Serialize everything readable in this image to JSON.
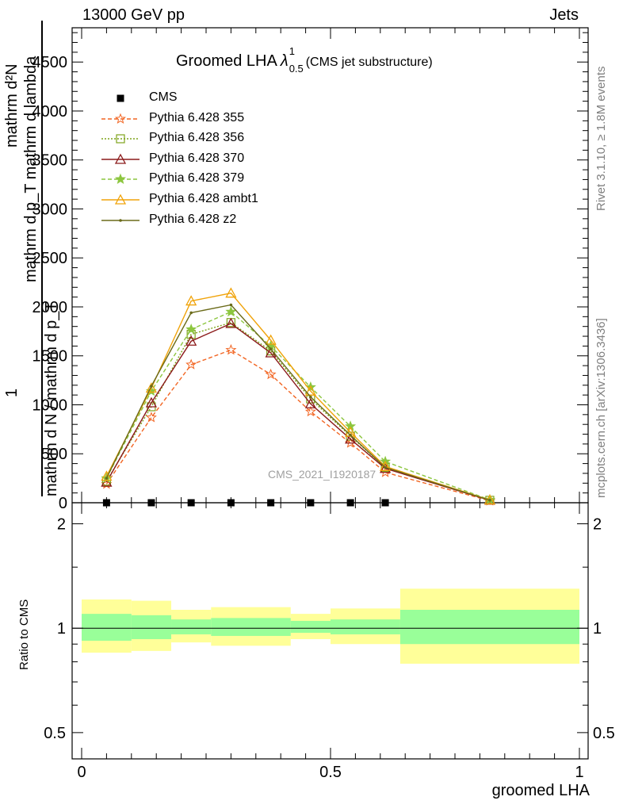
{
  "header": {
    "left": "13000 GeV pp",
    "right": "Jets"
  },
  "side_text": {
    "rivet": "Rivet 3.1.10, ≥ 1.8M events",
    "mcplots": "mcplots.cern.ch [arXiv:1306.3436]"
  },
  "watermark": "CMS_2021_I1920187",
  "chart_data": [
    {
      "type": "line",
      "panel": "main",
      "title": {
        "main": "Groomed LHA",
        "lambda": "λ",
        "sup": "1",
        "sub": "0.5",
        "suffix": "(CMS jet substructure)"
      },
      "ylabel": {
        "numerator": "mathrm d²N",
        "fraction_top": "1",
        "full": "mathrm d N / mathrm d p_T mathrm d p_T mathrm d lambda"
      },
      "ylabel_display": {
        "top": "mathrm d²N",
        "lines": [
          "mathrm d p_T mathrm d lambda",
          "mathrm d N / mathrm d p_T",
          "1"
        ]
      },
      "ylim": [
        0,
        4850
      ],
      "xlim": [
        -0.02,
        1.0
      ],
      "yticks": [
        0,
        500,
        1000,
        1500,
        2000,
        2500,
        3000,
        3500,
        4000,
        4500
      ],
      "yticklabels": [
        "0",
        "500",
        "1000",
        "1500",
        "2000",
        "2500",
        "3000",
        "3500",
        "4000",
        "4500"
      ],
      "x": [
        0.05,
        0.14,
        0.22,
        0.3,
        0.38,
        0.46,
        0.54,
        0.61,
        0.82
      ],
      "legend_position": "top-left",
      "series": [
        {
          "name": "CMS",
          "color": "#000000",
          "marker": "square",
          "dash": "",
          "values": [
            0,
            0,
            0,
            0,
            0,
            0,
            0,
            0,
            null
          ]
        },
        {
          "name": "Pythia 6.428 355",
          "color": "#f26522",
          "marker": "star-open",
          "dash": "5,3",
          "values": [
            190,
            870,
            1410,
            1560,
            1310,
            930,
            610,
            310,
            20
          ]
        },
        {
          "name": "Pythia 6.428 356",
          "color": "#7fa31c",
          "marker": "square-open",
          "dash": "2,2",
          "values": [
            220,
            980,
            1720,
            1840,
            1550,
            1060,
            680,
            360,
            25
          ]
        },
        {
          "name": "Pythia 6.428 370",
          "color": "#8b1a1a",
          "marker": "triangle-open",
          "dash": "",
          "values": [
            210,
            1020,
            1650,
            1830,
            1530,
            1010,
            650,
            350,
            25
          ]
        },
        {
          "name": "Pythia 6.428 379",
          "color": "#8cc63f",
          "marker": "star",
          "dash": "5,3",
          "values": [
            250,
            1140,
            1770,
            1950,
            1600,
            1180,
            780,
            420,
            30
          ]
        },
        {
          "name": "Pythia 6.428 ambt1",
          "color": "#f0a30a",
          "marker": "triangle-open",
          "dash": "",
          "values": [
            270,
            1170,
            2060,
            2140,
            1660,
            1140,
            720,
            370,
            28
          ]
        },
        {
          "name": "Pythia 6.428 z2",
          "color": "#6b6b1a",
          "marker": "dot",
          "dash": "",
          "values": [
            250,
            1190,
            1940,
            2020,
            1570,
            1080,
            690,
            360,
            26
          ]
        }
      ]
    },
    {
      "type": "area",
      "panel": "ratio",
      "ylabel": "Ratio to CMS",
      "xlabel": "groomed LHA",
      "ylim": [
        0.42,
        2.3
      ],
      "log_y": true,
      "yticklabels": [
        "0.5",
        "1",
        "2"
      ],
      "yticks": [
        0.5,
        1,
        2
      ],
      "xticks": [
        0,
        0.5,
        1
      ],
      "xticklabels": [
        "0",
        "0.5",
        "1"
      ],
      "reference": 1,
      "bins": [
        {
          "x0": 0.0,
          "x1": 0.1,
          "inner": [
            0.92,
            1.1
          ],
          "outer": [
            0.85,
            1.21
          ]
        },
        {
          "x0": 0.1,
          "x1": 0.18,
          "inner": [
            0.93,
            1.09
          ],
          "outer": [
            0.86,
            1.2
          ]
        },
        {
          "x0": 0.18,
          "x1": 0.26,
          "inner": [
            0.96,
            1.06
          ],
          "outer": [
            0.91,
            1.13
          ]
        },
        {
          "x0": 0.26,
          "x1": 0.42,
          "inner": [
            0.95,
            1.07
          ],
          "outer": [
            0.89,
            1.15
          ]
        },
        {
          "x0": 0.42,
          "x1": 0.5,
          "inner": [
            0.97,
            1.05
          ],
          "outer": [
            0.93,
            1.1
          ]
        },
        {
          "x0": 0.5,
          "x1": 0.64,
          "inner": [
            0.96,
            1.06
          ],
          "outer": [
            0.9,
            1.14
          ]
        },
        {
          "x0": 0.64,
          "x1": 1.0,
          "inner": [
            0.9,
            1.13
          ],
          "outer": [
            0.79,
            1.3
          ]
        }
      ],
      "band_colors": {
        "inner": "#99ff99",
        "outer": "#ffff99"
      }
    }
  ]
}
